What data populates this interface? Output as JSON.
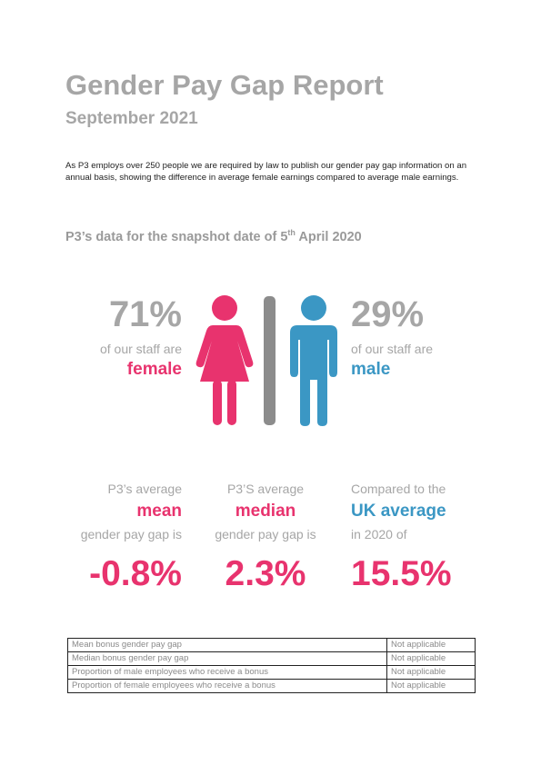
{
  "header": {
    "title": "Gender Pay Gap Report",
    "subtitle": "September 2021"
  },
  "intro": {
    "text": "As P3 employs over 250 people we are required by law to publish our gender pay gap information on an annual basis, showing the difference in average female earnings compared to average male earnings."
  },
  "snapshot": {
    "prefix": "P3’s data for the snapshot date of 5",
    "superscript": "th",
    "suffix": " April 2020"
  },
  "staff": {
    "female": {
      "percent": "71%",
      "line": "of our staff are",
      "label": "female"
    },
    "male": {
      "percent": "29%",
      "line": "of our staff are",
      "label": "male"
    }
  },
  "pay_gap": {
    "mean": {
      "line1": "P3’s average",
      "label": "mean",
      "line2": "gender pay gap is",
      "value": "-0.8%"
    },
    "median": {
      "line1": "P3’S average",
      "label": "median",
      "line2": "gender pay gap is",
      "value": "2.3%"
    },
    "uk": {
      "line1": "Compared to the",
      "label": "UK average",
      "line2": "in 2020 of",
      "value": "15.5%"
    }
  },
  "bonus_table": [
    {
      "label": "Mean bonus gender pay gap",
      "value": "Not applicable"
    },
    {
      "label": "Median bonus gender pay gap",
      "value": "Not applicable"
    },
    {
      "label": "Proportion of male employees who receive a bonus",
      "value": "Not applicable"
    },
    {
      "label": "Proportion of female employees who receive a bonus",
      "value": "Not applicable"
    }
  ],
  "colors": {
    "female": "#e8336e",
    "male": "#3b97c4",
    "heading_grey": "#a6a6a6",
    "divider": "#8c8c8c"
  },
  "icons": {
    "female": "female-figure-icon",
    "male": "male-figure-icon"
  }
}
